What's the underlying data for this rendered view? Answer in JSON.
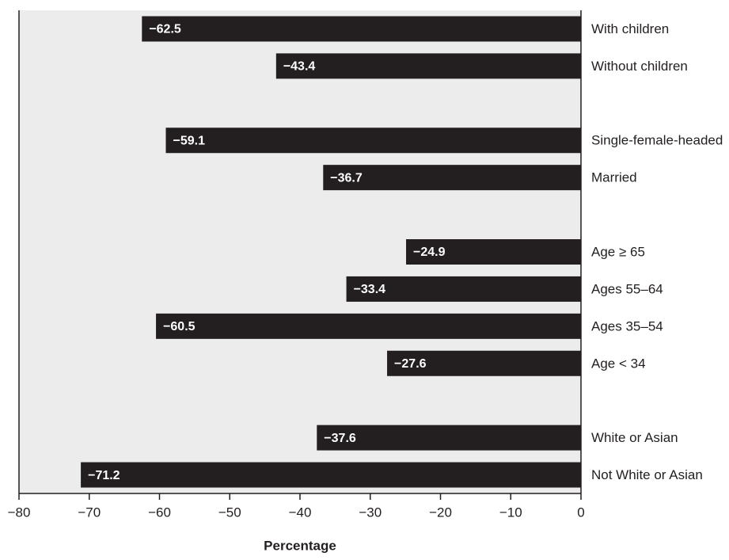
{
  "chart_data": {
    "type": "barh",
    "xlabel": "Percentage",
    "categories": [
      "With children",
      "Without children",
      null,
      "Single-female-headed",
      "Married",
      null,
      "Age ≥ 65",
      "Ages 55–64",
      "Ages 35–54",
      "Age < 34",
      null,
      "White or Asian",
      "Not White or Asian"
    ],
    "values": [
      -62.5,
      -43.4,
      null,
      -59.1,
      -36.7,
      null,
      -24.9,
      -33.4,
      -60.5,
      -27.6,
      null,
      -37.6,
      -71.2
    ],
    "value_labels": [
      "−62.5",
      "−43.4",
      null,
      "−59.1",
      "−36.7",
      null,
      "−24.9",
      "−33.4",
      "−60.5",
      "−27.6",
      null,
      "−37.6",
      "−71.2"
    ],
    "color": "#231f20",
    "xlim": [
      -80,
      0
    ],
    "xticks": [
      {
        "value": -80,
        "label": "−80"
      },
      {
        "value": -70,
        "label": "−70"
      },
      {
        "value": -60,
        "label": "−60"
      },
      {
        "value": -50,
        "label": "−50"
      },
      {
        "value": -40,
        "label": "−40"
      },
      {
        "value": -30,
        "label": "−30"
      },
      {
        "value": -20,
        "label": "−20"
      },
      {
        "value": -10,
        "label": "−10"
      },
      0
    ]
  }
}
